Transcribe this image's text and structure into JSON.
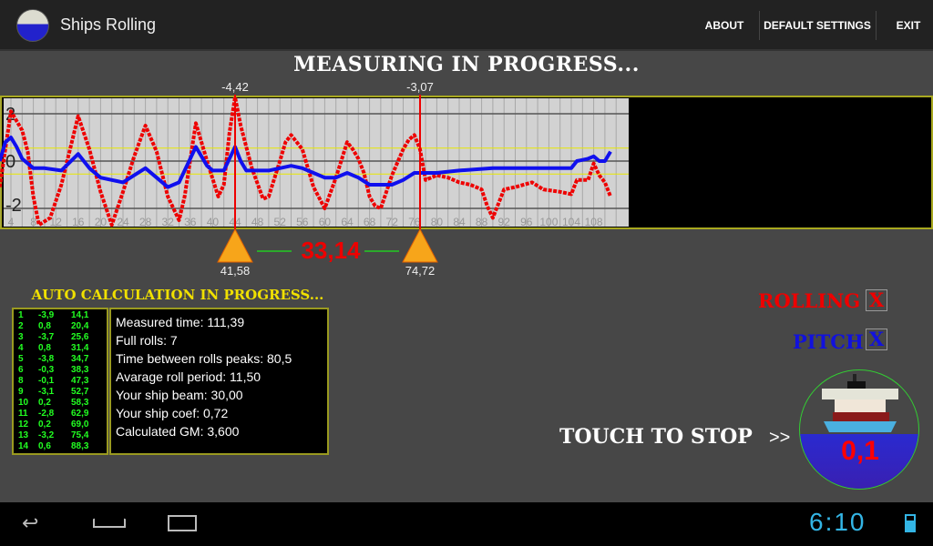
{
  "app": {
    "title": "Ships Rolling",
    "menu": [
      "ABOUT",
      "DEFAULT SETTINGS",
      "EXIT"
    ]
  },
  "status_title": "MEASURING IN PROGRESS...",
  "markers": {
    "left": {
      "peak": "-4,42",
      "time": "41,58"
    },
    "right": {
      "peak": "-3,07",
      "time": "74,72"
    },
    "difference": "33,14"
  },
  "chart_data": {
    "type": "line",
    "xlim": [
      2,
      112
    ],
    "ylim": [
      -2.7,
      2.7
    ],
    "x_ticks": [
      4,
      8,
      12,
      16,
      20,
      24,
      28,
      32,
      36,
      40,
      44,
      48,
      52,
      56,
      60,
      64,
      68,
      72,
      76,
      80,
      84,
      88,
      92,
      96,
      100,
      104,
      108
    ],
    "y_ticks": [
      2,
      0,
      -2
    ],
    "threshold_lines": [
      0.55,
      -0.55
    ],
    "grid": true,
    "series": [
      {
        "color": "#ee0000",
        "points": [
          [
            2,
            -1.1
          ],
          [
            3,
            0.5
          ],
          [
            4,
            2.1
          ],
          [
            6,
            1.3
          ],
          [
            7,
            0.4
          ],
          [
            8,
            -1.5
          ],
          [
            9,
            -2.7
          ],
          [
            11,
            -2.4
          ],
          [
            13,
            -1.0
          ],
          [
            16,
            1.9
          ],
          [
            18,
            0.5
          ],
          [
            20,
            -1.3
          ],
          [
            22,
            -2.7
          ],
          [
            24,
            -1.3
          ],
          [
            26,
            0.2
          ],
          [
            28,
            1.5
          ],
          [
            30,
            0.4
          ],
          [
            32,
            -1.5
          ],
          [
            34,
            -2.5
          ],
          [
            35,
            -1.5
          ],
          [
            37,
            1.6
          ],
          [
            39,
            0
          ],
          [
            41,
            -1.5
          ],
          [
            42,
            -1.0
          ],
          [
            43,
            1.2
          ],
          [
            44,
            2.7
          ],
          [
            45,
            1.5
          ],
          [
            47,
            -0.3
          ],
          [
            49,
            -1.6
          ],
          [
            50,
            -1.5
          ],
          [
            52,
            0
          ],
          [
            53,
            0.8
          ],
          [
            54,
            1.1
          ],
          [
            56,
            0.5
          ],
          [
            58,
            -1.1
          ],
          [
            60,
            -2.0
          ],
          [
            62,
            -0.7
          ],
          [
            64,
            0.8
          ],
          [
            65,
            0.5
          ],
          [
            66,
            0.1
          ],
          [
            67,
            -0.5
          ],
          [
            68,
            -1.5
          ],
          [
            69,
            -1.9
          ],
          [
            70,
            -2.0
          ],
          [
            72,
            -0.6
          ],
          [
            74,
            0.5
          ],
          [
            75,
            0.9
          ],
          [
            76,
            1.1
          ],
          [
            77,
            0.5
          ],
          [
            78,
            -0.8
          ],
          [
            80,
            -0.6
          ],
          [
            82,
            -0.7
          ],
          [
            84,
            -0.9
          ],
          [
            86,
            -1.0
          ],
          [
            88,
            -1.2
          ],
          [
            89,
            -1.9
          ],
          [
            90,
            -2.4
          ],
          [
            91,
            -1.8
          ],
          [
            92,
            -1.2
          ],
          [
            94,
            -1.1
          ],
          [
            97,
            -0.9
          ],
          [
            99,
            -1.2
          ],
          [
            102,
            -1.3
          ],
          [
            104,
            -1.4
          ],
          [
            105,
            -0.8
          ],
          [
            107,
            -0.8
          ],
          [
            108,
            -0.1
          ],
          [
            109,
            -0.6
          ],
          [
            110,
            -0.9
          ],
          [
            111,
            -1.5
          ]
        ]
      },
      {
        "color": "#1010ee",
        "points": [
          [
            2,
            0
          ],
          [
            3,
            0.8
          ],
          [
            4,
            1.0
          ],
          [
            5,
            0.6
          ],
          [
            6,
            0.1
          ],
          [
            8,
            -0.3
          ],
          [
            10,
            -0.3
          ],
          [
            13,
            -0.4
          ],
          [
            16,
            0.3
          ],
          [
            18,
            -0.3
          ],
          [
            20,
            -0.7
          ],
          [
            24,
            -0.9
          ],
          [
            26,
            -0.6
          ],
          [
            28,
            -0.3
          ],
          [
            30,
            -0.7
          ],
          [
            32,
            -1.1
          ],
          [
            34,
            -0.9
          ],
          [
            37,
            0.6
          ],
          [
            39,
            -0.2
          ],
          [
            40,
            -0.4
          ],
          [
            42,
            -0.4
          ],
          [
            44,
            0.6
          ],
          [
            45,
            0
          ],
          [
            46,
            -0.4
          ],
          [
            50,
            -0.4
          ],
          [
            52,
            -0.3
          ],
          [
            54,
            -0.2
          ],
          [
            56,
            -0.3
          ],
          [
            58,
            -0.5
          ],
          [
            60,
            -0.7
          ],
          [
            62,
            -0.7
          ],
          [
            64,
            -0.5
          ],
          [
            66,
            -0.7
          ],
          [
            68,
            -1.0
          ],
          [
            70,
            -1.0
          ],
          [
            72,
            -1.0
          ],
          [
            74,
            -0.8
          ],
          [
            76,
            -0.5
          ],
          [
            80,
            -0.5
          ],
          [
            84,
            -0.4
          ],
          [
            90,
            -0.3
          ],
          [
            100,
            -0.3
          ],
          [
            104,
            -0.3
          ],
          [
            105,
            0
          ],
          [
            107,
            0.1
          ],
          [
            108,
            0.2
          ],
          [
            109,
            0
          ],
          [
            110,
            0
          ],
          [
            111,
            0.4
          ]
        ]
      }
    ]
  },
  "calc": {
    "title": "AUTO CALCULATION IN PROGRESS...",
    "rows": [
      [
        "1",
        "-3,9",
        "14,1"
      ],
      [
        "2",
        "0,8",
        "20,4"
      ],
      [
        "3",
        "-3,7",
        "25,6"
      ],
      [
        "4",
        "0,8",
        "31,4"
      ],
      [
        "5",
        "-3,8",
        "34,7"
      ],
      [
        "6",
        "-0,3",
        "38,3"
      ],
      [
        "8",
        "-0,1",
        "47,3"
      ],
      [
        "9",
        "-3,1",
        "52,7"
      ],
      [
        "10",
        "0,2",
        "58,3"
      ],
      [
        "11",
        "-2,8",
        "62,9"
      ],
      [
        "12",
        "0,2",
        "69,0"
      ],
      [
        "13",
        "-3,2",
        "75,4"
      ],
      [
        "14",
        "0,6",
        "88,3"
      ]
    ],
    "info": [
      "Measured time: 111,39",
      "Full rolls: 7",
      "Time between rolls peaks: 80,5",
      "Avarage roll period: 11,50",
      "Your ship beam: 30,00",
      "Your ship coef: 0,72",
      "Calculated GM: 3,600"
    ]
  },
  "toggles": {
    "rolling": {
      "label": "ROLLING",
      "mark": "X"
    },
    "pitch": {
      "label": "PITCH",
      "mark": "X"
    }
  },
  "stop": {
    "label": "TOUCH TO STOP",
    "arrows": ">>",
    "gauge_value": "0,1"
  },
  "system": {
    "clock": "6:10"
  }
}
